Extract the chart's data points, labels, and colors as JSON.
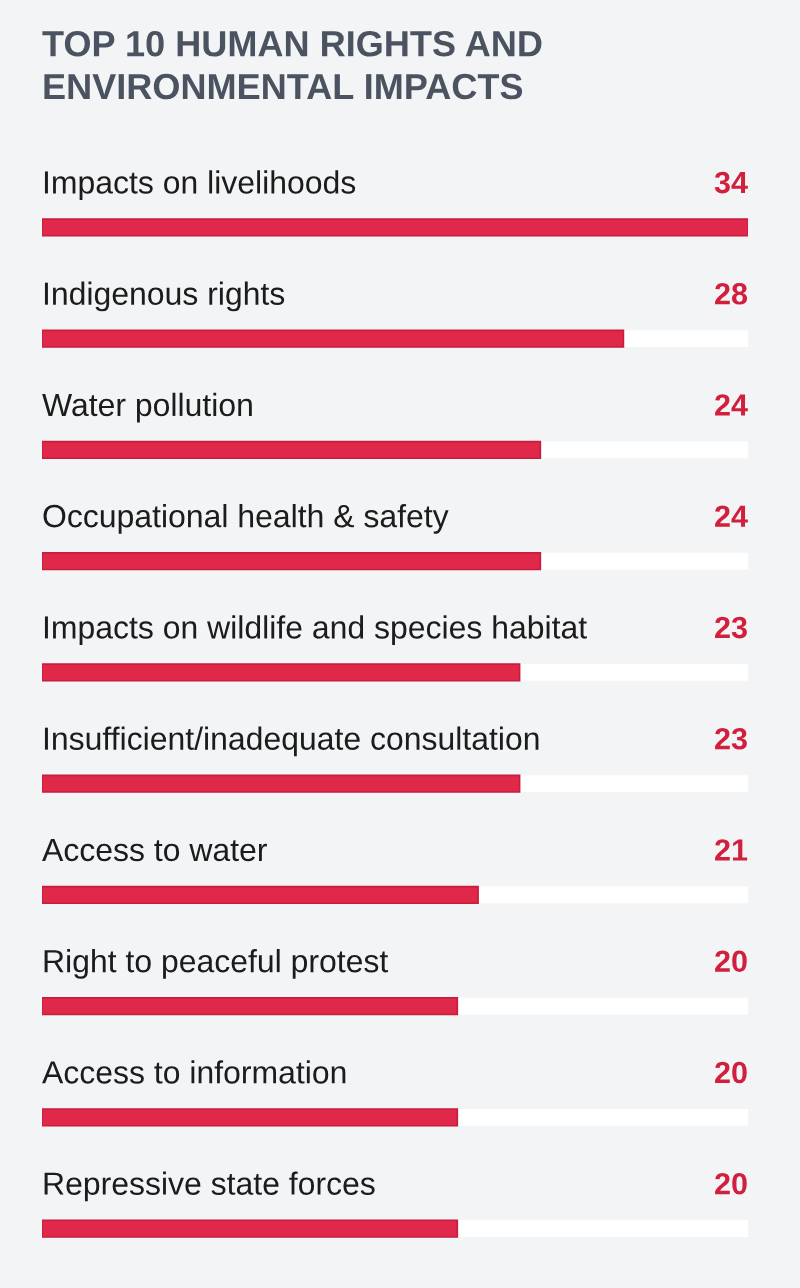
{
  "chart_data": {
    "type": "bar",
    "orientation": "horizontal",
    "title": "TOP 10 HUMAN RIGHTS AND ENVIRONMENTAL IMPACTS",
    "categories": [
      "Impacts on livelihoods",
      "Indigenous rights",
      "Water pollution",
      "Occupational health & safety",
      "Impacts on wildlife and species habitat",
      "Insufficient/inadequate consultation",
      "Access to water",
      "Right to peaceful protest",
      "Access to information",
      "Repressive state forces"
    ],
    "values": [
      34,
      28,
      24,
      24,
      23,
      23,
      21,
      20,
      20,
      20
    ],
    "color": "#e0284a",
    "xlim": [
      0,
      34
    ],
    "data_labels": true,
    "tick_labels": "y"
  }
}
